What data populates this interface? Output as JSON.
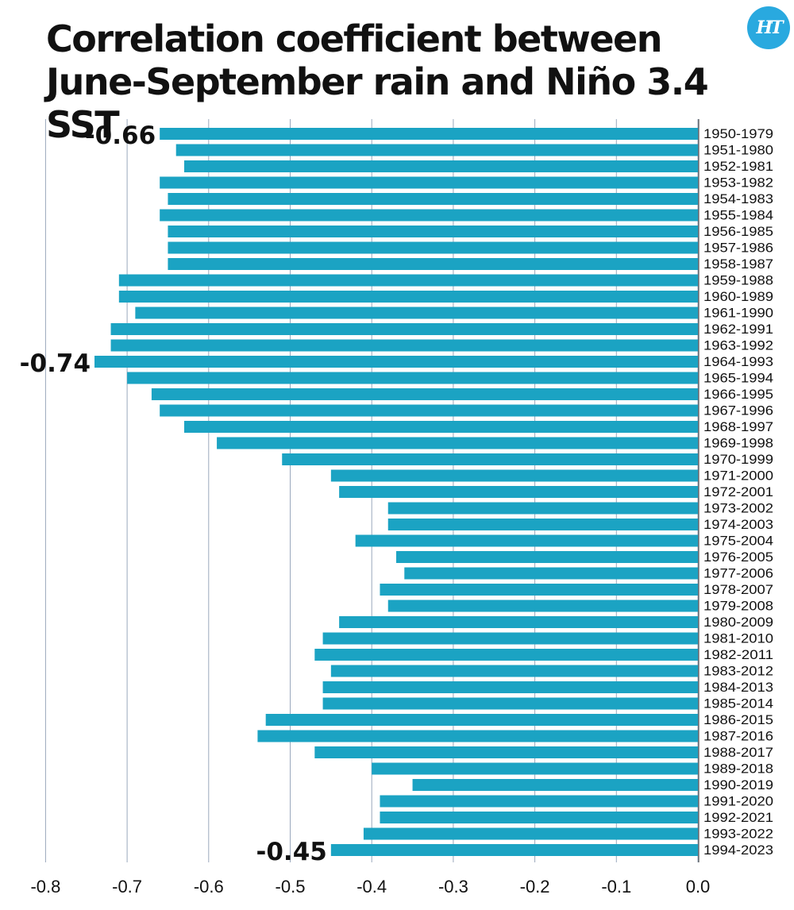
{
  "title": "Correlation coefficient between June-September rain and Niño 3.4 SST",
  "logo": {
    "text": "HT",
    "color": "#29a9df"
  },
  "colors": {
    "bar": "#1ba3c3",
    "grid": "#9aa8bc",
    "text": "#111111"
  },
  "chart_data": {
    "type": "bar",
    "orientation": "horizontal",
    "title": "Correlation coefficient between June-September rain and Niño 3.4 SST",
    "xlabel": "",
    "ylabel": "",
    "xlim": [
      -0.8,
      0.0
    ],
    "xticks": [
      -0.8,
      -0.7,
      -0.6,
      -0.5,
      -0.4,
      -0.3,
      -0.2,
      -0.1,
      0.0
    ],
    "xtick_labels": [
      "-0.8",
      "-0.7",
      "-0.6",
      "-0.5",
      "-0.4",
      "-0.3",
      "-0.2",
      "-0.1",
      "0.0"
    ],
    "grid": "vertical",
    "category_labels_position": "right",
    "categories": [
      "1950-1979",
      "1951-1980",
      "1952-1981",
      "1953-1982",
      "1954-1983",
      "1955-1984",
      "1956-1985",
      "1957-1986",
      "1958-1987",
      "1959-1988",
      "1960-1989",
      "1961-1990",
      "1962-1991",
      "1963-1992",
      "1964-1993",
      "1965-1994",
      "1966-1995",
      "1967-1996",
      "1968-1997",
      "1969-1998",
      "1970-1999",
      "1971-2000",
      "1972-2001",
      "1973-2002",
      "1974-2003",
      "1975-2004",
      "1976-2005",
      "1977-2006",
      "1978-2007",
      "1979-2008",
      "1980-2009",
      "1981-2010",
      "1982-2011",
      "1983-2012",
      "1984-2013",
      "1985-2014",
      "1986-2015",
      "1987-2016",
      "1988-2017",
      "1989-2018",
      "1990-2019",
      "1991-2020",
      "1992-2021",
      "1993-2022",
      "1994-2023"
    ],
    "values": [
      -0.66,
      -0.64,
      -0.63,
      -0.66,
      -0.65,
      -0.66,
      -0.65,
      -0.65,
      -0.65,
      -0.71,
      -0.71,
      -0.69,
      -0.72,
      -0.72,
      -0.74,
      -0.7,
      -0.67,
      -0.66,
      -0.63,
      -0.59,
      -0.51,
      -0.45,
      -0.44,
      -0.38,
      -0.38,
      -0.42,
      -0.37,
      -0.36,
      -0.39,
      -0.38,
      -0.44,
      -0.46,
      -0.47,
      -0.45,
      -0.46,
      -0.46,
      -0.53,
      -0.54,
      -0.47,
      -0.4,
      -0.35,
      -0.39,
      -0.39,
      -0.41,
      -0.45
    ],
    "annotations": [
      {
        "category": "1950-1979",
        "text": "-0.66"
      },
      {
        "category": "1964-1993",
        "text": "-0.74"
      },
      {
        "category": "1994-2023",
        "text": "-0.45"
      }
    ]
  }
}
